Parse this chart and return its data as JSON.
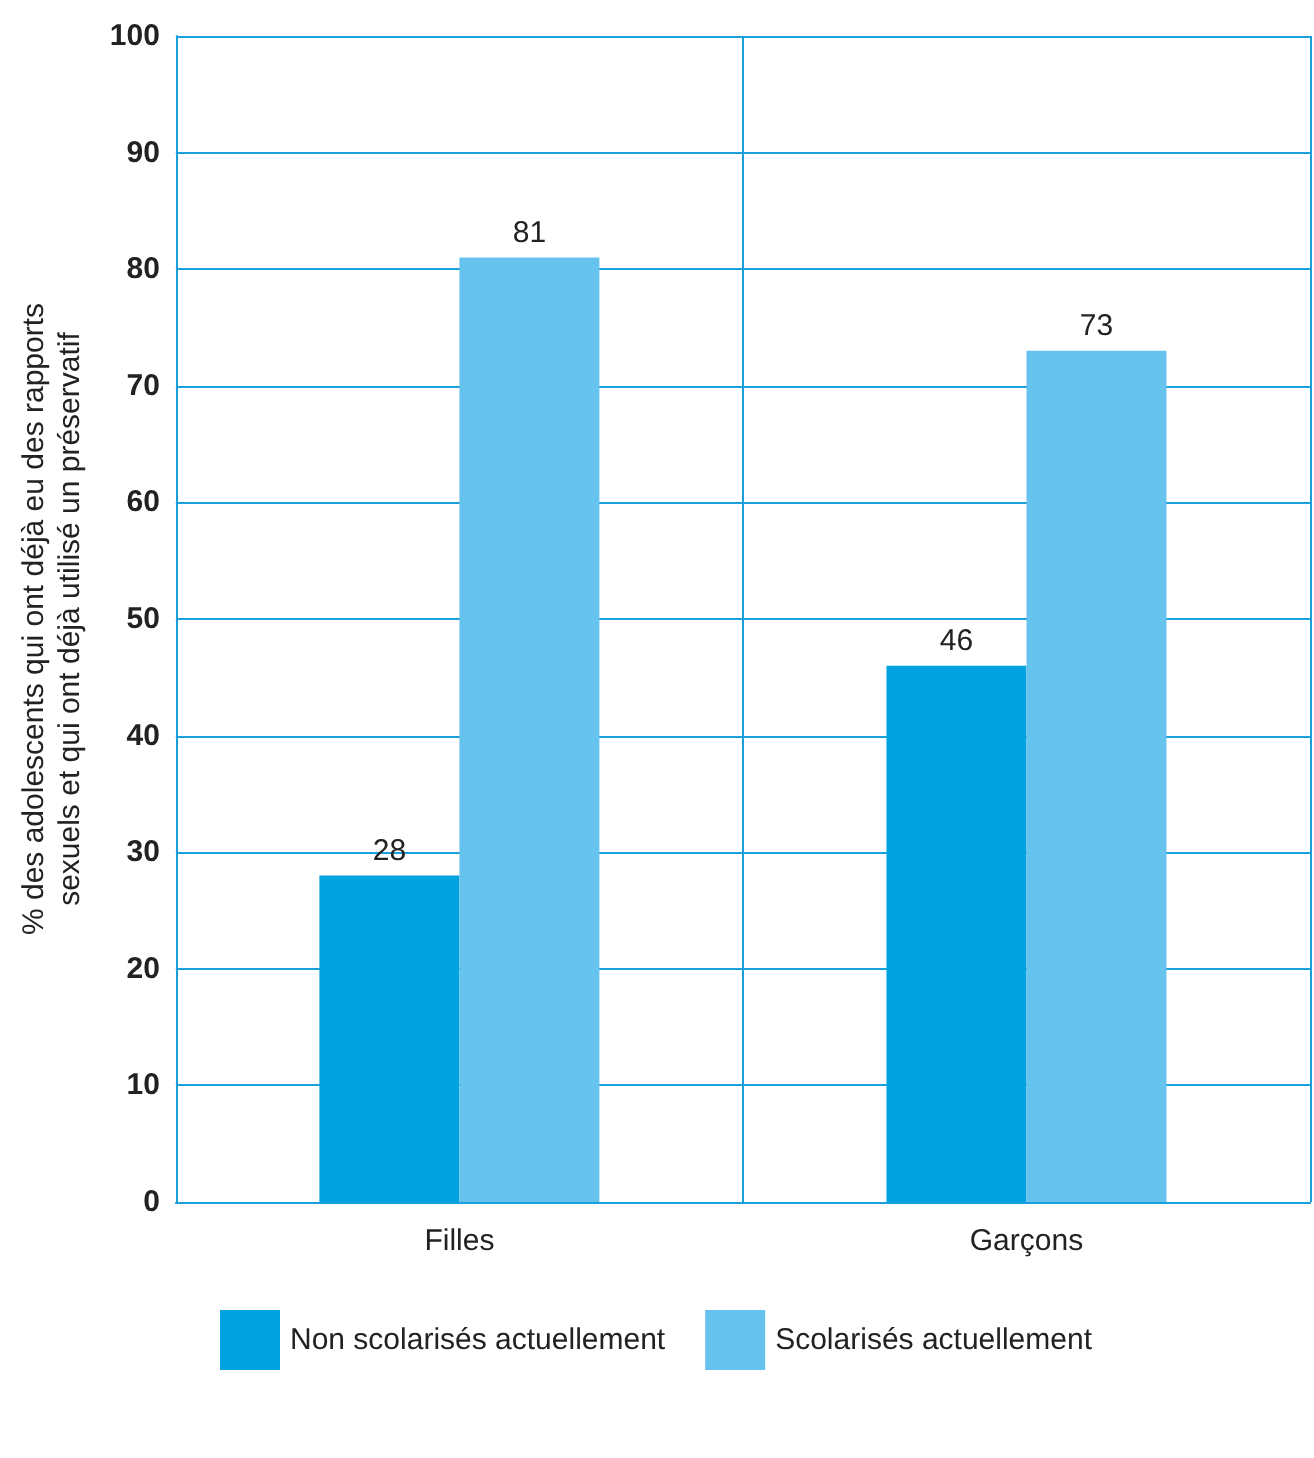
{
  "chart_data": {
    "type": "bar",
    "ylabel": "% des adolescents qui ont déjà eu des rapports\nsexuels et qui ont déjà utilisé un préservatif",
    "categories": [
      "Filles",
      "Garçons"
    ],
    "series": [
      {
        "name": "Non scolarisés actuellement",
        "color": "#00a3e0",
        "values": [
          28,
          46
        ]
      },
      {
        "name": "Scolarisés actuellement",
        "color": "#66c3ee",
        "values": [
          81,
          73
        ]
      }
    ],
    "ylim": [
      0,
      100
    ],
    "yticks": [
      0,
      10,
      20,
      30,
      40,
      50,
      60,
      70,
      80,
      90,
      100
    ],
    "grid": true,
    "legend": "bottom left",
    "data_labels": true
  }
}
